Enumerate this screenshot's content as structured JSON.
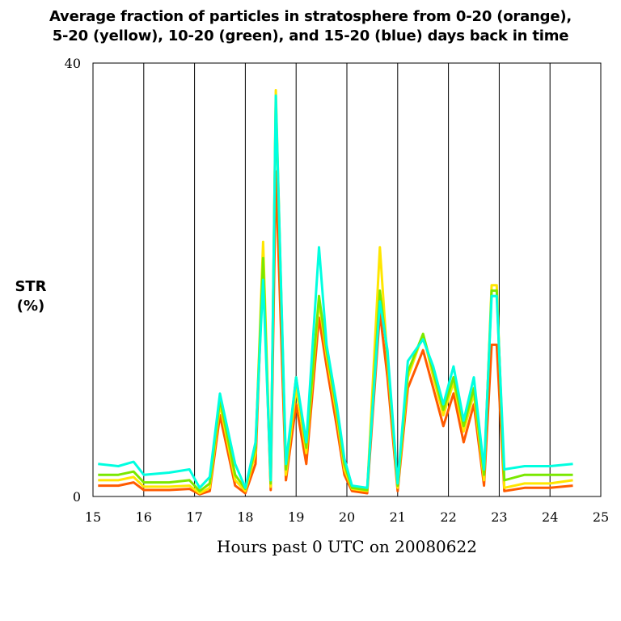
{
  "chart_data": {
    "type": "line",
    "title_line1": "Average fraction of particles in stratosphere from 0-20 (orange),",
    "title_line2": "5-20 (yellow), 10-20 (green), and 15-20 (blue) days back in time",
    "ylabel_line1": "STR",
    "ylabel_line2": "(%)",
    "xlabel": "Hours past 0 UTC on 20080622",
    "xlim": [
      15,
      25
    ],
    "ylim": [
      0,
      40
    ],
    "x_ticks": [
      "15",
      "16",
      "17",
      "18",
      "19",
      "20",
      "21",
      "22",
      "23",
      "24",
      "25"
    ],
    "y_ticks": [
      "0",
      "40"
    ],
    "vertical_gridlines": [
      16,
      17,
      18,
      19,
      20,
      21,
      22,
      23,
      24
    ],
    "series": [
      {
        "name": "0-20",
        "color": "#ff5a00",
        "x": [
          15.1,
          15.5,
          15.8,
          16.0,
          16.5,
          16.9,
          17.1,
          17.3,
          17.5,
          17.8,
          18.0,
          18.2,
          18.35,
          18.5,
          18.6,
          18.8,
          19.0,
          19.2,
          19.45,
          19.6,
          19.8,
          19.95,
          20.1,
          20.4,
          20.65,
          20.8,
          21.0,
          21.2,
          21.5,
          21.7,
          21.9,
          22.1,
          22.3,
          22.5,
          22.7,
          22.85,
          22.95,
          23.1,
          23.5,
          24.0,
          24.45
        ],
        "y": [
          1.0,
          1.0,
          1.3,
          0.6,
          0.6,
          0.7,
          0.2,
          0.5,
          7.5,
          1.0,
          0.3,
          3.0,
          22.0,
          0.6,
          30.0,
          1.5,
          8.5,
          3.0,
          16.5,
          12.0,
          6.5,
          2.0,
          0.5,
          0.3,
          17.0,
          11.0,
          0.5,
          10.0,
          13.5,
          10.0,
          6.5,
          9.5,
          5.0,
          8.5,
          1.0,
          14.0,
          14.0,
          0.5,
          0.8,
          0.8,
          1.0
        ]
      },
      {
        "name": "5-20",
        "color": "#ffe600",
        "x": [
          15.1,
          15.5,
          15.8,
          16.0,
          16.5,
          16.9,
          17.1,
          17.3,
          17.5,
          17.8,
          18.0,
          18.2,
          18.35,
          18.5,
          18.6,
          18.8,
          19.0,
          19.2,
          19.45,
          19.6,
          19.8,
          19.95,
          20.1,
          20.4,
          20.65,
          20.8,
          21.0,
          21.2,
          21.5,
          21.7,
          21.9,
          22.1,
          22.3,
          22.5,
          22.7,
          22.85,
          22.95,
          23.1,
          23.5,
          24.0,
          24.45
        ],
        "y": [
          1.5,
          1.5,
          1.8,
          0.9,
          0.9,
          1.0,
          0.3,
          0.8,
          8.5,
          1.5,
          0.5,
          4.0,
          23.5,
          0.9,
          37.5,
          2.0,
          10.0,
          4.0,
          18.0,
          13.0,
          7.5,
          2.5,
          0.7,
          0.5,
          23.0,
          12.5,
          0.8,
          11.0,
          15.0,
          11.0,
          7.5,
          10.5,
          6.0,
          9.5,
          1.5,
          19.5,
          19.5,
          0.8,
          1.2,
          1.2,
          1.5
        ]
      },
      {
        "name": "10-20",
        "color": "#7ae800",
        "x": [
          15.1,
          15.5,
          15.8,
          16.0,
          16.5,
          16.9,
          17.1,
          17.3,
          17.5,
          17.8,
          18.0,
          18.2,
          18.35,
          18.5,
          18.6,
          18.8,
          19.0,
          19.2,
          19.45,
          19.6,
          19.8,
          19.95,
          20.1,
          20.4,
          20.65,
          20.8,
          21.0,
          21.2,
          21.5,
          21.7,
          21.9,
          22.1,
          22.3,
          22.5,
          22.7,
          22.85,
          22.95,
          23.1,
          23.5,
          24.0,
          24.45
        ],
        "y": [
          2.0,
          2.0,
          2.3,
          1.3,
          1.3,
          1.5,
          0.5,
          1.2,
          9.0,
          2.0,
          0.7,
          4.5,
          22.0,
          1.2,
          36.5,
          2.5,
          11.0,
          4.5,
          18.5,
          13.5,
          8.0,
          3.0,
          0.8,
          0.6,
          19.0,
          13.0,
          1.0,
          11.5,
          15.0,
          11.5,
          8.0,
          11.0,
          6.5,
          10.0,
          2.0,
          19.0,
          19.0,
          1.5,
          2.0,
          2.0,
          2.0
        ]
      },
      {
        "name": "15-20",
        "color": "#00ffe0",
        "x": [
          15.1,
          15.5,
          15.8,
          16.0,
          16.5,
          16.9,
          17.1,
          17.3,
          17.5,
          17.8,
          18.0,
          18.2,
          18.35,
          18.5,
          18.6,
          18.8,
          19.0,
          19.2,
          19.45,
          19.6,
          19.8,
          19.95,
          20.1,
          20.4,
          20.65,
          20.8,
          21.0,
          21.2,
          21.5,
          21.7,
          21.9,
          22.1,
          22.3,
          22.5,
          22.7,
          22.85,
          22.95,
          23.1,
          23.5,
          24.0,
          24.45
        ],
        "y": [
          3.0,
          2.8,
          3.2,
          2.0,
          2.2,
          2.5,
          0.8,
          1.8,
          9.5,
          3.0,
          0.8,
          5.0,
          20.0,
          1.5,
          37.0,
          3.0,
          11.0,
          5.0,
          23.0,
          14.0,
          8.5,
          3.5,
          1.0,
          0.8,
          18.0,
          13.5,
          1.2,
          12.5,
          14.5,
          12.0,
          8.5,
          12.0,
          7.0,
          11.0,
          2.5,
          18.5,
          18.5,
          2.5,
          2.8,
          2.8,
          3.0
        ]
      }
    ]
  }
}
